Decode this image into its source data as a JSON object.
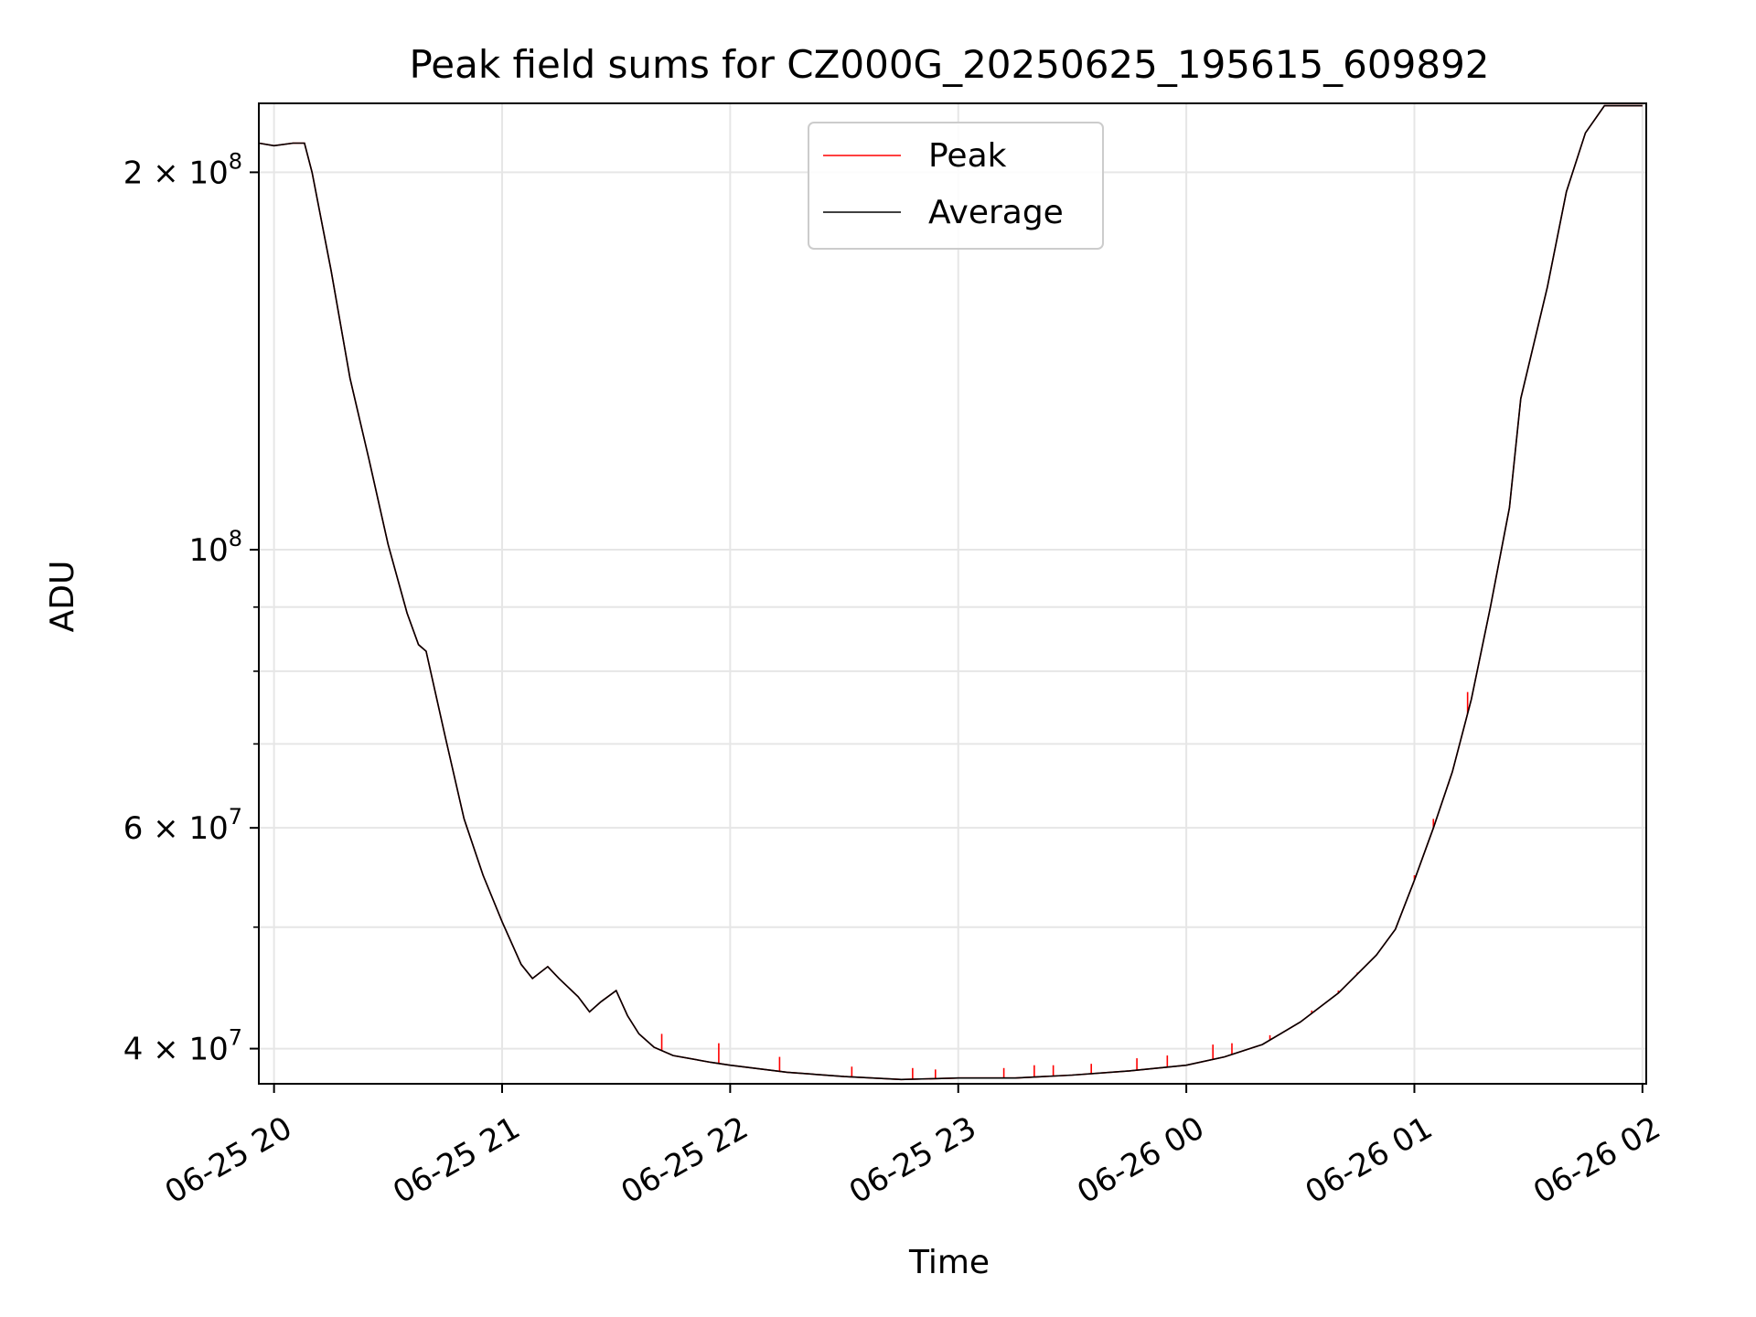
{
  "chart_data": {
    "type": "line",
    "title": "Peak field sums for CZ000G_20250625_195615_609892",
    "xlabel": "Time",
    "ylabel": "ADU",
    "y_scale": "log",
    "grid": true,
    "legend_position": "top-center",
    "xlim": [
      "2025-06-25 19:56",
      "2025-06-26 02:01"
    ],
    "ylim": [
      37500000,
      227000000
    ],
    "x_ticks": [
      {
        "value": "2025-06-25 20:00",
        "label": "06-25 20"
      },
      {
        "value": "2025-06-25 21:00",
        "label": "06-25 21"
      },
      {
        "value": "2025-06-25 22:00",
        "label": "06-25 22"
      },
      {
        "value": "2025-06-25 23:00",
        "label": "06-25 23"
      },
      {
        "value": "2025-06-26 00:00",
        "label": "06-26 00"
      },
      {
        "value": "2025-06-26 01:00",
        "label": "06-26 01"
      },
      {
        "value": "2025-06-26 02:00",
        "label": "06-26 02"
      }
    ],
    "y_ticks": [
      {
        "value": 40000000,
        "base": "4 × 10",
        "exp": "7"
      },
      {
        "value": 60000000,
        "base": "6 × 10",
        "exp": "7"
      },
      {
        "value": 100000000,
        "base": "10",
        "exp": "8"
      },
      {
        "value": 200000000,
        "base": "2 × 10",
        "exp": "8"
      }
    ],
    "y_minor_ticks": [
      50000000,
      70000000,
      80000000,
      90000000
    ],
    "series": [
      {
        "name": "Peak",
        "color": "#ff0000",
        "x": [
          "2025-06-25 19:56",
          "2025-06-25 20:00",
          "2025-06-25 20:05",
          "2025-06-25 20:08",
          "2025-06-25 20:10",
          "2025-06-25 20:15",
          "2025-06-25 20:20",
          "2025-06-25 20:25",
          "2025-06-25 20:30",
          "2025-06-25 20:35",
          "2025-06-25 20:38",
          "2025-06-25 20:40",
          "2025-06-25 20:45",
          "2025-06-25 20:50",
          "2025-06-25 20:55",
          "2025-06-25 21:00",
          "2025-06-25 21:05",
          "2025-06-25 21:08",
          "2025-06-25 21:12",
          "2025-06-25 21:15",
          "2025-06-25 21:20",
          "2025-06-25 21:23",
          "2025-06-25 21:26",
          "2025-06-25 21:30",
          "2025-06-25 21:33",
          "2025-06-25 21:36",
          "2025-06-25 21:40",
          "2025-06-25 21:45",
          "2025-06-25 21:55",
          "2025-06-25 22:00",
          "2025-06-25 22:15",
          "2025-06-25 22:30",
          "2025-06-25 22:45",
          "2025-06-25 23:00",
          "2025-06-25 23:15",
          "2025-06-25 23:30",
          "2025-06-25 23:45",
          "2025-06-26 00:00",
          "2025-06-26 00:10",
          "2025-06-26 00:20",
          "2025-06-26 00:30",
          "2025-06-26 00:40",
          "2025-06-26 00:50",
          "2025-06-26 00:55",
          "2025-06-26 01:00",
          "2025-06-26 01:05",
          "2025-06-26 01:10",
          "2025-06-26 01:15",
          "2025-06-26 01:20",
          "2025-06-26 01:25",
          "2025-06-26 01:28",
          "2025-06-26 01:35",
          "2025-06-26 01:40",
          "2025-06-26 01:45",
          "2025-06-26 01:50",
          "2025-06-26 02:00"
        ],
        "y": [
          211000000,
          210000000,
          211000000,
          211000000,
          200000000,
          167000000,
          137000000,
          118000000,
          101000000,
          89000000,
          84000000,
          83000000,
          71000000,
          61000000,
          55000000,
          50500000,
          46700000,
          45500000,
          46500000,
          45500000,
          44000000,
          42800000,
          43600000,
          44500000,
          42500000,
          41100000,
          40100000,
          39500000,
          39000000,
          38800000,
          38300000,
          38000000,
          37800000,
          37900000,
          37900000,
          38100000,
          38400000,
          38800000,
          39400000,
          40300000,
          42000000,
          44300000,
          47500000,
          49800000,
          54500000,
          60000000,
          66500000,
          76000000,
          90000000,
          108000000,
          132000000,
          162000000,
          193000000,
          215000000,
          226000000,
          226000000
        ],
        "spikes": [
          {
            "x": "2025-06-25 21:42",
            "y": 41100000
          },
          {
            "x": "2025-06-25 21:57",
            "y": 40400000
          },
          {
            "x": "2025-06-25 22:13",
            "y": 39400000
          },
          {
            "x": "2025-06-25 22:32",
            "y": 38700000
          },
          {
            "x": "2025-06-25 22:48",
            "y": 38600000
          },
          {
            "x": "2025-06-25 22:54",
            "y": 38500000
          },
          {
            "x": "2025-06-25 23:12",
            "y": 38600000
          },
          {
            "x": "2025-06-25 23:20",
            "y": 38800000
          },
          {
            "x": "2025-06-25 23:25",
            "y": 38800000
          },
          {
            "x": "2025-06-25 23:35",
            "y": 38900000
          },
          {
            "x": "2025-06-25 23:47",
            "y": 39300000
          },
          {
            "x": "2025-06-25 23:55",
            "y": 39500000
          },
          {
            "x": "2025-06-26 00:07",
            "y": 40300000
          },
          {
            "x": "2025-06-26 00:12",
            "y": 40400000
          },
          {
            "x": "2025-06-26 00:22",
            "y": 41000000
          },
          {
            "x": "2025-06-26 00:33",
            "y": 42900000
          },
          {
            "x": "2025-06-26 00:40",
            "y": 44500000
          },
          {
            "x": "2025-06-26 00:45",
            "y": 46000000
          },
          {
            "x": "2025-06-26 00:50",
            "y": 47500000
          },
          {
            "x": "2025-06-26 01:00",
            "y": 55000000
          },
          {
            "x": "2025-06-26 01:05",
            "y": 61000000
          },
          {
            "x": "2025-06-26 01:09",
            "y": 65000000
          },
          {
            "x": "2025-06-26 01:14",
            "y": 77000000
          }
        ]
      },
      {
        "name": "Average",
        "color": "#000000",
        "x": [
          "2025-06-25 19:56",
          "2025-06-25 20:00",
          "2025-06-25 20:05",
          "2025-06-25 20:08",
          "2025-06-25 20:10",
          "2025-06-25 20:15",
          "2025-06-25 20:20",
          "2025-06-25 20:25",
          "2025-06-25 20:30",
          "2025-06-25 20:35",
          "2025-06-25 20:38",
          "2025-06-25 20:40",
          "2025-06-25 20:45",
          "2025-06-25 20:50",
          "2025-06-25 20:55",
          "2025-06-25 21:00",
          "2025-06-25 21:05",
          "2025-06-25 21:08",
          "2025-06-25 21:12",
          "2025-06-25 21:15",
          "2025-06-25 21:20",
          "2025-06-25 21:23",
          "2025-06-25 21:26",
          "2025-06-25 21:30",
          "2025-06-25 21:33",
          "2025-06-25 21:36",
          "2025-06-25 21:40",
          "2025-06-25 21:45",
          "2025-06-25 21:55",
          "2025-06-25 22:00",
          "2025-06-25 22:15",
          "2025-06-25 22:30",
          "2025-06-25 22:45",
          "2025-06-25 23:00",
          "2025-06-25 23:15",
          "2025-06-25 23:30",
          "2025-06-25 23:45",
          "2025-06-26 00:00",
          "2025-06-26 00:10",
          "2025-06-26 00:20",
          "2025-06-26 00:30",
          "2025-06-26 00:40",
          "2025-06-26 00:50",
          "2025-06-26 00:55",
          "2025-06-26 01:00",
          "2025-06-26 01:05",
          "2025-06-26 01:10",
          "2025-06-26 01:15",
          "2025-06-26 01:20",
          "2025-06-26 01:25",
          "2025-06-26 01:28",
          "2025-06-26 01:35",
          "2025-06-26 01:40",
          "2025-06-26 01:45",
          "2025-06-26 01:50",
          "2025-06-26 02:00"
        ],
        "y": [
          211000000,
          210000000,
          211000000,
          211000000,
          200000000,
          167000000,
          137000000,
          118000000,
          101000000,
          89000000,
          84000000,
          83000000,
          71000000,
          61000000,
          55000000,
          50500000,
          46700000,
          45500000,
          46500000,
          45500000,
          44000000,
          42800000,
          43600000,
          44500000,
          42500000,
          41100000,
          40100000,
          39500000,
          39000000,
          38800000,
          38300000,
          38000000,
          37800000,
          37900000,
          37900000,
          38100000,
          38400000,
          38800000,
          39400000,
          40300000,
          42000000,
          44300000,
          47500000,
          49800000,
          54500000,
          60000000,
          66500000,
          76000000,
          90000000,
          108000000,
          132000000,
          162000000,
          193000000,
          215000000,
          226000000,
          226000000
        ]
      }
    ]
  }
}
